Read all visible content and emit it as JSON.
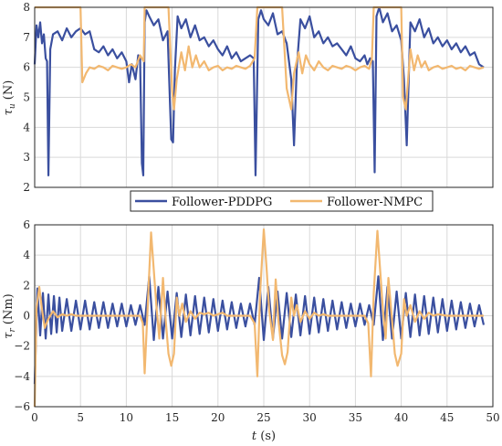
{
  "colors": {
    "pddpg": "#3a4f9f",
    "nmpc": "#f2b870",
    "grid": "#d9d9d9",
    "axis": "#262626"
  },
  "legend": {
    "entries": [
      "Follower-PDDPG",
      "Follower-NMPC"
    ],
    "placement": "between panels, centered"
  },
  "chart_data": [
    {
      "type": "line",
      "ylabel": "τ_u (N)",
      "xlabel": "",
      "xlim": [
        0,
        50
      ],
      "ylim": [
        2,
        8
      ],
      "yticks": [
        "2",
        "3",
        "4",
        "5",
        "6",
        "7",
        "8"
      ],
      "xticks": [],
      "grid": true,
      "series": [
        {
          "name": "Follower-PDDPG",
          "x": [
            0,
            0.2,
            0.4,
            0.6,
            0.8,
            1.0,
            1.2,
            1.35,
            1.5,
            1.7,
            2,
            2.5,
            3,
            3.5,
            4,
            4.5,
            5,
            5.5,
            6,
            6.5,
            7,
            7.5,
            8,
            8.5,
            9,
            9.5,
            10,
            10.3,
            10.6,
            11,
            11.3,
            11.5,
            11.7,
            11.85,
            12,
            12.2,
            12.5,
            13,
            13.5,
            14,
            14.5,
            14.9,
            15.1,
            15.3,
            15.6,
            16,
            16.5,
            17,
            17.5,
            18,
            18.5,
            19,
            19.5,
            20,
            20.5,
            21,
            21.5,
            22,
            22.5,
            23,
            23.5,
            23.9,
            24.1,
            24.4,
            24.7,
            25,
            25.5,
            26,
            26.5,
            27,
            27.5,
            28,
            28.3,
            28.6,
            29,
            29.5,
            30,
            30.5,
            31,
            31.5,
            32,
            32.5,
            33,
            33.5,
            34,
            34.5,
            35,
            35.5,
            36,
            36.3,
            36.6,
            36.9,
            37.1,
            37.3,
            37.6,
            38,
            38.5,
            39,
            39.5,
            40,
            40.3,
            40.6,
            41,
            41.5,
            42,
            42.5,
            43,
            43.5,
            44,
            44.5,
            45,
            45.5,
            46,
            46.5,
            47,
            47.5,
            48,
            48.5,
            49
          ],
          "y": [
            6.1,
            7.4,
            7.0,
            7.5,
            6.8,
            7.1,
            6.3,
            6.2,
            2.4,
            6.6,
            7.1,
            7.2,
            6.9,
            7.3,
            7.0,
            7.2,
            7.3,
            7.1,
            7.2,
            6.6,
            6.5,
            6.7,
            6.4,
            6.6,
            6.3,
            6.5,
            6.2,
            5.5,
            6.1,
            5.6,
            6.4,
            6.3,
            2.8,
            2.4,
            7.5,
            7.9,
            7.7,
            7.4,
            7.6,
            6.9,
            7.2,
            3.6,
            3.5,
            5.9,
            7.7,
            7.3,
            7.6,
            7.0,
            7.4,
            6.9,
            7.0,
            6.7,
            6.9,
            6.6,
            6.4,
            6.7,
            6.3,
            6.5,
            6.2,
            6.3,
            6.4,
            6.3,
            2.4,
            7.6,
            7.9,
            7.6,
            7.4,
            7.8,
            7.1,
            7.2,
            6.8,
            5.6,
            3.4,
            6.0,
            7.6,
            7.3,
            7.7,
            7.0,
            7.2,
            6.8,
            7.0,
            6.7,
            6.8,
            6.6,
            6.4,
            6.7,
            6.3,
            6.2,
            6.4,
            6.1,
            6.3,
            6.2,
            2.5,
            7.7,
            8.0,
            7.5,
            7.8,
            7.2,
            7.4,
            6.9,
            5.6,
            3.4,
            7.5,
            7.2,
            7.6,
            7.0,
            7.3,
            6.8,
            7.0,
            6.7,
            6.9,
            6.6,
            6.8,
            6.5,
            6.7,
            6.4,
            6.5,
            6.1,
            6.0
          ]
        },
        {
          "name": "Follower-NMPC",
          "x": [
            0,
            1,
            2,
            3,
            4,
            5,
            5.2,
            5.6,
            6,
            6.5,
            7,
            7.5,
            8,
            8.5,
            9,
            9.5,
            10,
            10.5,
            11,
            11.5,
            11.9,
            12,
            13,
            14,
            14.6,
            15,
            15.2,
            15.5,
            16,
            16.4,
            16.8,
            17.2,
            17.6,
            18,
            18.5,
            19,
            19.5,
            20,
            20.5,
            21,
            21.5,
            22,
            22.5,
            23,
            23.5,
            24,
            24.3,
            25,
            26,
            27,
            27.5,
            28,
            28.3,
            28.8,
            29.2,
            29.6,
            30,
            30.5,
            31,
            31.5,
            32,
            32.5,
            33,
            33.5,
            34,
            34.5,
            35,
            35.5,
            36,
            36.5,
            36.8,
            37,
            38,
            39,
            40,
            40.2,
            40.5,
            41,
            41.4,
            41.8,
            42.2,
            42.6,
            43,
            43.5,
            44,
            44.5,
            45,
            45.5,
            46,
            46.5,
            47,
            47.5,
            48,
            48.5,
            49
          ],
          "y": [
            8.0,
            8.0,
            8.0,
            8.0,
            8.0,
            8.0,
            5.5,
            5.8,
            6.0,
            5.95,
            6.05,
            6.0,
            5.9,
            6.05,
            6.0,
            5.95,
            6.0,
            6.1,
            6.0,
            6.4,
            6.2,
            8.0,
            8.0,
            8.0,
            8.0,
            5.2,
            4.6,
            5.6,
            6.5,
            5.9,
            6.7,
            6.0,
            6.4,
            6.0,
            6.2,
            5.9,
            6.0,
            6.05,
            5.9,
            6.0,
            5.95,
            6.05,
            6.0,
            5.95,
            6.05,
            6.3,
            8.0,
            8.0,
            8.0,
            8.0,
            5.3,
            4.6,
            5.8,
            6.5,
            5.8,
            6.4,
            6.1,
            5.9,
            6.2,
            6.0,
            5.9,
            6.05,
            6.0,
            5.95,
            6.05,
            6.0,
            5.9,
            6.0,
            6.05,
            5.95,
            6.3,
            8.0,
            8.0,
            8.0,
            8.0,
            5.0,
            4.6,
            6.6,
            5.9,
            6.4,
            6.0,
            6.2,
            5.9,
            6.0,
            6.05,
            5.95,
            6.0,
            6.05,
            5.95,
            6.0,
            5.9,
            6.05,
            6.0,
            5.95,
            6.0
          ]
        }
      ]
    },
    {
      "type": "line",
      "ylabel": "τ_r (Nm)",
      "xlabel": "t (s)",
      "xlim": [
        0,
        50
      ],
      "ylim": [
        -6,
        6
      ],
      "yticks": [
        "-6",
        "-4",
        "-2",
        "0",
        "2",
        "4",
        "6"
      ],
      "xticks": [
        "0",
        "5",
        "10",
        "15",
        "20",
        "25",
        "30",
        "35",
        "40",
        "45",
        "50"
      ],
      "grid": true,
      "series": [
        {
          "name": "Follower-PDDPG",
          "x": [
            0,
            0.3,
            0.6,
            0.9,
            1.2,
            1.5,
            1.8,
            2.1,
            2.4,
            2.7,
            3.0,
            3.5,
            4,
            4.5,
            5,
            5.5,
            6,
            6.5,
            7,
            7.5,
            8,
            8.5,
            9,
            9.5,
            10,
            10.5,
            11,
            11.5,
            12,
            12.5,
            13,
            13.5,
            14,
            14.5,
            15,
            15.5,
            16,
            16.5,
            17,
            17.5,
            18,
            18.5,
            19,
            19.5,
            20,
            20.5,
            21,
            21.5,
            22,
            22.5,
            23,
            23.5,
            24,
            24.5,
            25,
            25.5,
            26,
            26.5,
            27,
            27.5,
            28,
            28.5,
            29,
            29.5,
            30,
            30.5,
            31,
            31.5,
            32,
            32.5,
            33,
            33.5,
            34,
            34.5,
            35,
            35.5,
            36,
            36.5,
            37,
            37.5,
            38,
            38.5,
            39,
            39.5,
            40,
            40.5,
            41,
            41.5,
            42,
            42.5,
            43,
            43.5,
            44,
            44.5,
            45,
            45.5,
            46,
            46.5,
            47,
            47.5,
            48,
            48.5,
            49
          ],
          "y": [
            -4.5,
            1.8,
            -1.3,
            1.5,
            -1.5,
            1.4,
            -1.2,
            1.3,
            -1.1,
            1.2,
            -1.0,
            1.1,
            -1.0,
            1.0,
            -0.9,
            1.0,
            -0.9,
            0.9,
            -0.8,
            0.9,
            -0.8,
            0.8,
            -0.7,
            0.8,
            -0.7,
            0.7,
            -0.6,
            0.7,
            -0.6,
            2.6,
            -1.6,
            1.9,
            -1.5,
            1.6,
            -1.5,
            1.5,
            -1.4,
            1.4,
            -1.3,
            1.3,
            -1.2,
            1.2,
            -1.1,
            1.1,
            -1.0,
            1.0,
            -0.9,
            0.9,
            -0.8,
            0.8,
            -0.7,
            0.8,
            -0.6,
            2.5,
            -1.6,
            1.9,
            -1.5,
            1.6,
            -1.5,
            1.5,
            -1.4,
            1.4,
            -1.3,
            1.3,
            -1.2,
            1.2,
            -1.1,
            1.1,
            -1.0,
            1.0,
            -0.9,
            0.9,
            -0.8,
            0.8,
            -0.7,
            0.8,
            -0.6,
            0.7,
            -0.6,
            2.6,
            -1.6,
            1.9,
            -1.5,
            1.6,
            -1.5,
            1.5,
            -1.4,
            1.4,
            -1.3,
            1.3,
            -1.2,
            1.2,
            -1.1,
            1.1,
            -1.0,
            1.0,
            -0.9,
            0.9,
            -0.8,
            0.8,
            -0.7,
            0.7,
            -0.6
          ]
        },
        {
          "name": "Follower-NMPC",
          "x": [
            0,
            0.2,
            0.5,
            0.8,
            1.1,
            1.5,
            2,
            2.5,
            3,
            3.5,
            4,
            4.5,
            5,
            6,
            7,
            8,
            9,
            10,
            11,
            11.5,
            11.8,
            12.0,
            12.4,
            12.7,
            13.0,
            13.3,
            13.6,
            14.0,
            14.3,
            14.6,
            14.9,
            15.2,
            15.5,
            15.8,
            16.1,
            16.5,
            17,
            17.5,
            18,
            18.5,
            19,
            19.5,
            20,
            20.5,
            21,
            22,
            23,
            23.5,
            24,
            24.3,
            24.6,
            25.0,
            25.3,
            25.6,
            26.0,
            26.3,
            26.6,
            27.0,
            27.3,
            27.6,
            28.0,
            28.3,
            28.6,
            29.0,
            29.5,
            30,
            30.5,
            31,
            31.5,
            32,
            33,
            34,
            35,
            36,
            36.4,
            36.7,
            37.0,
            37.4,
            37.7,
            38.0,
            38.3,
            38.6,
            39.0,
            39.3,
            39.6,
            40.0,
            40.3,
            40.6,
            41.0,
            41.5,
            42,
            42.5,
            43,
            43.5,
            44,
            45,
            46,
            47,
            48,
            49
          ],
          "y": [
            -6.0,
            0.5,
            1.9,
            0.4,
            -0.8,
            -0.2,
            0.3,
            -0.1,
            0.1,
            0.0,
            0.1,
            0.0,
            0.0,
            0.0,
            0.0,
            0.0,
            0.0,
            0.0,
            0.0,
            0.0,
            -0.5,
            -3.8,
            1.5,
            5.5,
            3.0,
            0.5,
            -1.5,
            2.5,
            -0.3,
            -2.5,
            -3.3,
            -2.5,
            1.2,
            0.0,
            0.8,
            -0.4,
            0.3,
            -0.2,
            0.2,
            0.1,
            0.2,
            0.0,
            0.1,
            0.2,
            0.0,
            0.0,
            0.0,
            0.0,
            -0.5,
            -4.0,
            1.5,
            5.7,
            3.2,
            0.3,
            -1.6,
            2.4,
            -0.3,
            -2.6,
            -3.2,
            -2.4,
            1.2,
            0.0,
            0.7,
            -0.4,
            0.3,
            -0.2,
            0.2,
            0.0,
            0.1,
            0.0,
            0.0,
            0.0,
            0.0,
            0.0,
            -0.5,
            -4.0,
            1.5,
            5.6,
            3.0,
            0.4,
            -1.5,
            2.5,
            -0.3,
            -2.5,
            -3.3,
            -2.5,
            1.1,
            0.0,
            0.7,
            -0.4,
            0.3,
            -0.2,
            0.2,
            0.0,
            0.1,
            0.0,
            0.0,
            0.0,
            0.0,
            0.0
          ]
        }
      ]
    }
  ]
}
